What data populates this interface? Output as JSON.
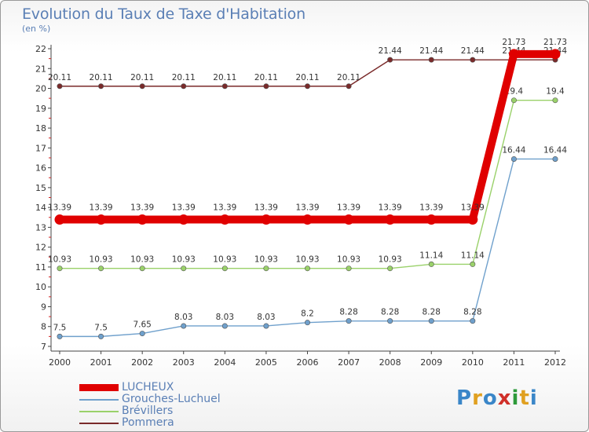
{
  "title": "Evolution du Taux de Taxe d'Habitation",
  "subtitle": "(en %)",
  "logo": {
    "text": "Proxiti",
    "letters": [
      "P",
      "r",
      "o",
      "x",
      "i",
      "t",
      "i"
    ],
    "colors": [
      "#3a86c8",
      "#e0a020",
      "#3a86c8",
      "#d0302a",
      "#2d9a3a",
      "#e0a020",
      "#3a86c8"
    ]
  },
  "chart_data": {
    "type": "line",
    "title": "Evolution du Taux de Taxe d'Habitation",
    "ylabel": "(en %)",
    "x": [
      "2000",
      "2001",
      "2002",
      "2003",
      "2004",
      "2005",
      "2006",
      "2007",
      "2008",
      "2009",
      "2010",
      "2011",
      "2012"
    ],
    "ylim": [
      7,
      22
    ],
    "yticks": [
      "7",
      "8",
      "9",
      "10",
      "11",
      "12",
      "13",
      "14",
      "15",
      "16",
      "17",
      "18",
      "19",
      "20",
      "21",
      "22"
    ],
    "grid": false,
    "legend_position": "bottom-left",
    "series": [
      {
        "name": "Pommera",
        "color": "#7a2a2a",
        "values": [
          20.11,
          20.11,
          20.11,
          20.11,
          20.11,
          20.11,
          20.11,
          20.11,
          21.44,
          21.44,
          21.44,
          21.44,
          21.44
        ],
        "labels": [
          "20.11",
          "20.11",
          "20.11",
          "20.11",
          "20.11",
          "20.11",
          "20.11",
          "20.11",
          "21.44",
          "21.44",
          "21.44",
          "21.44",
          "21.44"
        ]
      },
      {
        "name": "Brévillers",
        "color": "#9ad16a",
        "values": [
          10.93,
          10.93,
          10.93,
          10.93,
          10.93,
          10.93,
          10.93,
          10.93,
          10.93,
          11.14,
          11.14,
          19.4,
          19.4
        ],
        "labels": [
          "10.93",
          "10.93",
          "10.93",
          "10.93",
          "10.93",
          "10.93",
          "10.93",
          "10.93",
          "10.93",
          "11.14",
          "11.14",
          "19.4",
          "19.4"
        ]
      },
      {
        "name": "Grouches-Luchuel",
        "color": "#6fa0cc",
        "values": [
          7.5,
          7.5,
          7.65,
          8.03,
          8.03,
          8.03,
          8.2,
          8.28,
          8.28,
          8.28,
          8.28,
          16.44,
          16.44
        ],
        "labels": [
          "7.5",
          "7.5",
          "7.65",
          "8.03",
          "8.03",
          "8.03",
          "8.2",
          "8.28",
          "8.28",
          "8.28",
          "8.28",
          "16.44",
          "16.44"
        ]
      },
      {
        "name": "LUCHEUX",
        "color": "#e00000",
        "values": [
          13.39,
          13.39,
          13.39,
          13.39,
          13.39,
          13.39,
          13.39,
          13.39,
          13.39,
          13.39,
          13.39,
          21.73,
          21.73
        ],
        "labels": [
          "13.39",
          "13.39",
          "13.39",
          "13.39",
          "13.39",
          "13.39",
          "13.39",
          "13.39",
          "13.39",
          "13.39",
          "13.39",
          "21.73",
          "21.73"
        ]
      }
    ],
    "legend": [
      "LUCHEUX",
      "Grouches-Luchuel",
      "Brévillers",
      "Pommera"
    ]
  }
}
